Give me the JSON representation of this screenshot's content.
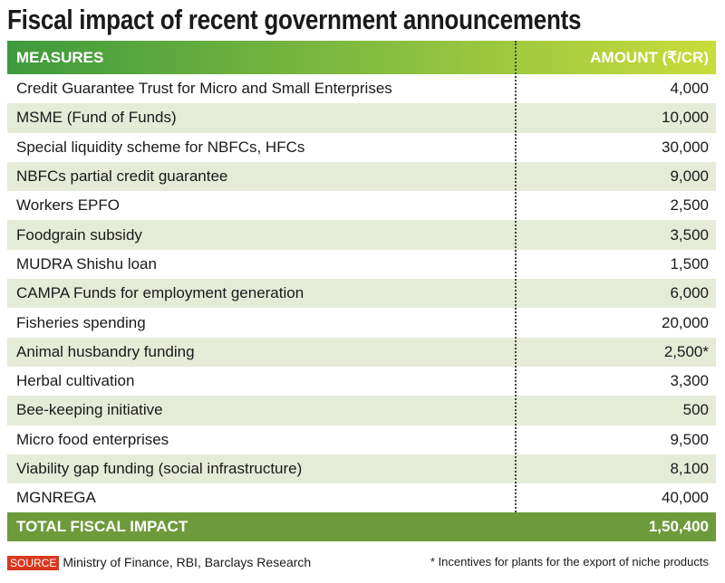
{
  "title": "Fiscal impact of recent government announcements",
  "table": {
    "header": [
      "MEASURES",
      "AMOUNT (₹/CR)"
    ],
    "rows": [
      [
        "Credit Guarantee Trust for Micro and Small Enterprises",
        "4,000"
      ],
      [
        "MSME (Fund of Funds)",
        "10,000"
      ],
      [
        "Special liquidity scheme for NBFCs, HFCs",
        "30,000"
      ],
      [
        "NBFCs partial credit guarantee",
        "9,000"
      ],
      [
        "Workers EPFO",
        "2,500"
      ],
      [
        "Foodgrain subsidy",
        "3,500"
      ],
      [
        "MUDRA Shishu loan",
        "1,500"
      ],
      [
        "CAMPA Funds for employment generation",
        "6,000"
      ],
      [
        "Fisheries spending",
        "20,000"
      ],
      [
        "Animal husbandry funding",
        "2,500*"
      ],
      [
        "Herbal cultivation",
        "3,300"
      ],
      [
        "Bee-keeping initiative",
        "500"
      ],
      [
        "Micro food enterprises",
        "9,500"
      ],
      [
        "Viability gap funding (social infrastructure)",
        "8,100"
      ],
      [
        "MGNREGA",
        "40,000"
      ]
    ],
    "total": [
      "TOTAL FISCAL IMPACT",
      "1,50,400"
    ]
  },
  "source": {
    "label": "SOURCE",
    "text": "Ministry of Finance, RBI, Barclays Research"
  },
  "note": "* Incentives for plants for the export of niche products"
}
